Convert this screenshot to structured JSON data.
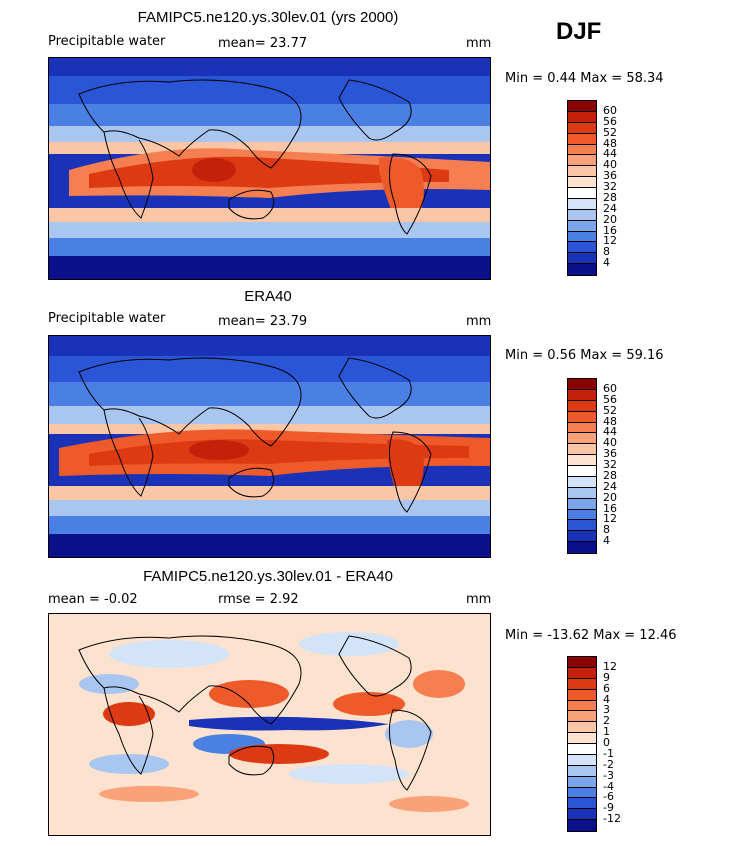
{
  "season": "DJF",
  "panels": [
    {
      "title": "FAMIPC5.ne120.ys.30lev.01 (yrs 2000)",
      "left_label": "Precipitable water",
      "stat_label": "mean=  23.77",
      "units": "mm",
      "range_label": "Min =   0.44 Max =  58.34",
      "levels": [
        "60",
        "56",
        "52",
        "48",
        "44",
        "40",
        "36",
        "32",
        "28",
        "24",
        "20",
        "16",
        "12",
        "8",
        "4"
      ],
      "colors": [
        "#8b0000",
        "#c4210a",
        "#dd3a13",
        "#ef5a2a",
        "#f67f52",
        "#f9a27a",
        "#fbc6a6",
        "#fde3cf",
        "#ffffff",
        "#d3e3f8",
        "#a9c6f1",
        "#7ba6eb",
        "#4a7fe3",
        "#2a55d6",
        "#1a32b8",
        "#0a0f8a"
      ]
    },
    {
      "title": "ERA40",
      "left_label": "Precipitable water",
      "stat_label": "mean=  23.79",
      "units": "mm",
      "range_label": "Min =   0.56 Max =  59.16",
      "levels": [
        "60",
        "56",
        "52",
        "48",
        "44",
        "40",
        "36",
        "32",
        "28",
        "24",
        "20",
        "16",
        "12",
        "8",
        "4"
      ],
      "colors": [
        "#8b0000",
        "#c4210a",
        "#dd3a13",
        "#ef5a2a",
        "#f67f52",
        "#f9a27a",
        "#fbc6a6",
        "#fde3cf",
        "#ffffff",
        "#d3e3f8",
        "#a9c6f1",
        "#7ba6eb",
        "#4a7fe3",
        "#2a55d6",
        "#1a32b8",
        "#0a0f8a"
      ]
    },
    {
      "title": "FAMIPC5.ne120.ys.30lev.01 - ERA40",
      "left_label": "mean =  -0.02",
      "stat_label": "rmse =    2.92",
      "units": "mm",
      "range_label": "Min = -13.62 Max =  12.46",
      "levels": [
        "12",
        "9",
        "6",
        "4",
        "3",
        "2",
        "1",
        "0",
        "-1",
        "-2",
        "-3",
        "-4",
        "-6",
        "-9",
        "-12"
      ],
      "colors": [
        "#8b0000",
        "#c4210a",
        "#dd3a13",
        "#ef5a2a",
        "#f67f52",
        "#f9a27a",
        "#fbc6a6",
        "#fde3cf",
        "#ffffff",
        "#d3e3f8",
        "#a9c6f1",
        "#7ba6eb",
        "#4a7fe3",
        "#2a55d6",
        "#1a32b8",
        "#0a0f8a"
      ]
    }
  ]
}
